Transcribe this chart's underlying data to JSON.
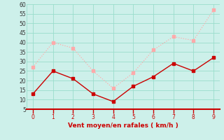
{
  "x": [
    0,
    1,
    2,
    3,
    4,
    5,
    6,
    7,
    8,
    9
  ],
  "y_mean": [
    13,
    25,
    21,
    13,
    9,
    17,
    22,
    29,
    25,
    32
  ],
  "y_gusts": [
    27,
    40,
    37,
    25,
    16,
    24,
    36,
    43,
    41,
    57
  ],
  "color_mean": "#cc0000",
  "color_gusts": "#ffaaaa",
  "bg_color": "#cdf0ea",
  "grid_color": "#99ddcc",
  "axis_color": "#cc0000",
  "tick_color": "#cc0000",
  "xlabel": "Vent moyen/en rafales ( km/h )",
  "xlabel_color": "#cc0000",
  "ylim": [
    5,
    60
  ],
  "yticks": [
    5,
    10,
    15,
    20,
    25,
    30,
    35,
    40,
    45,
    50,
    55,
    60
  ],
  "xlim": [
    -0.3,
    9.3
  ],
  "xticks": [
    0,
    1,
    2,
    3,
    4,
    5,
    6,
    7,
    8,
    9
  ]
}
